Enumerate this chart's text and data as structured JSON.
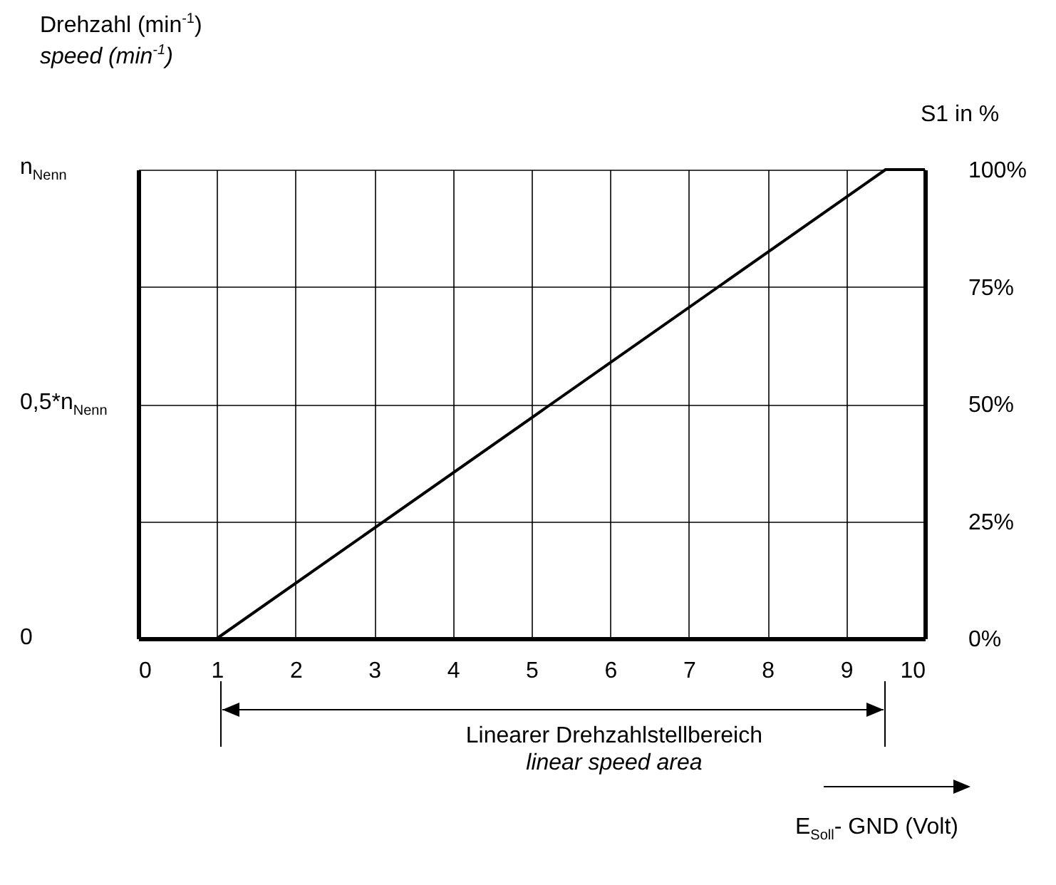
{
  "chart_data": {
    "type": "line",
    "ylabel": "Drehzahl (min$^{-1}$)\nspeed (min$^{-1}$)",
    "y2label": "S1 in %",
    "x": [
      1,
      9.5,
      10
    ],
    "series": [
      {
        "color": "#000000",
        "values": [
          0,
          100,
          100
        ]
      }
    ],
    "xlim": [
      0,
      10
    ],
    "xticks": [
      0,
      1,
      2,
      3,
      4,
      5,
      6,
      7,
      8,
      9,
      10
    ],
    "ylim": [
      0,
      100
    ],
    "yticks": [
      {
        "value": 0,
        "label": "0%"
      },
      {
        "value": 25,
        "label": "25%"
      },
      {
        "value": 50,
        "label": "50%"
      },
      {
        "value": 75,
        "label": "75%"
      },
      {
        "value": 100,
        "label": "100%"
      }
    ],
    "grid": true,
    "line_style": "solid",
    "marker": "none",
    "annotations": [
      "Linearer Drehzahlstellbereich",
      "linear speed area",
      "E$_{Soll}$- GND (Volt)",
      "0",
      "0,5*n$_{Nenn}$",
      "n$_{Nenn}$"
    ]
  }
}
